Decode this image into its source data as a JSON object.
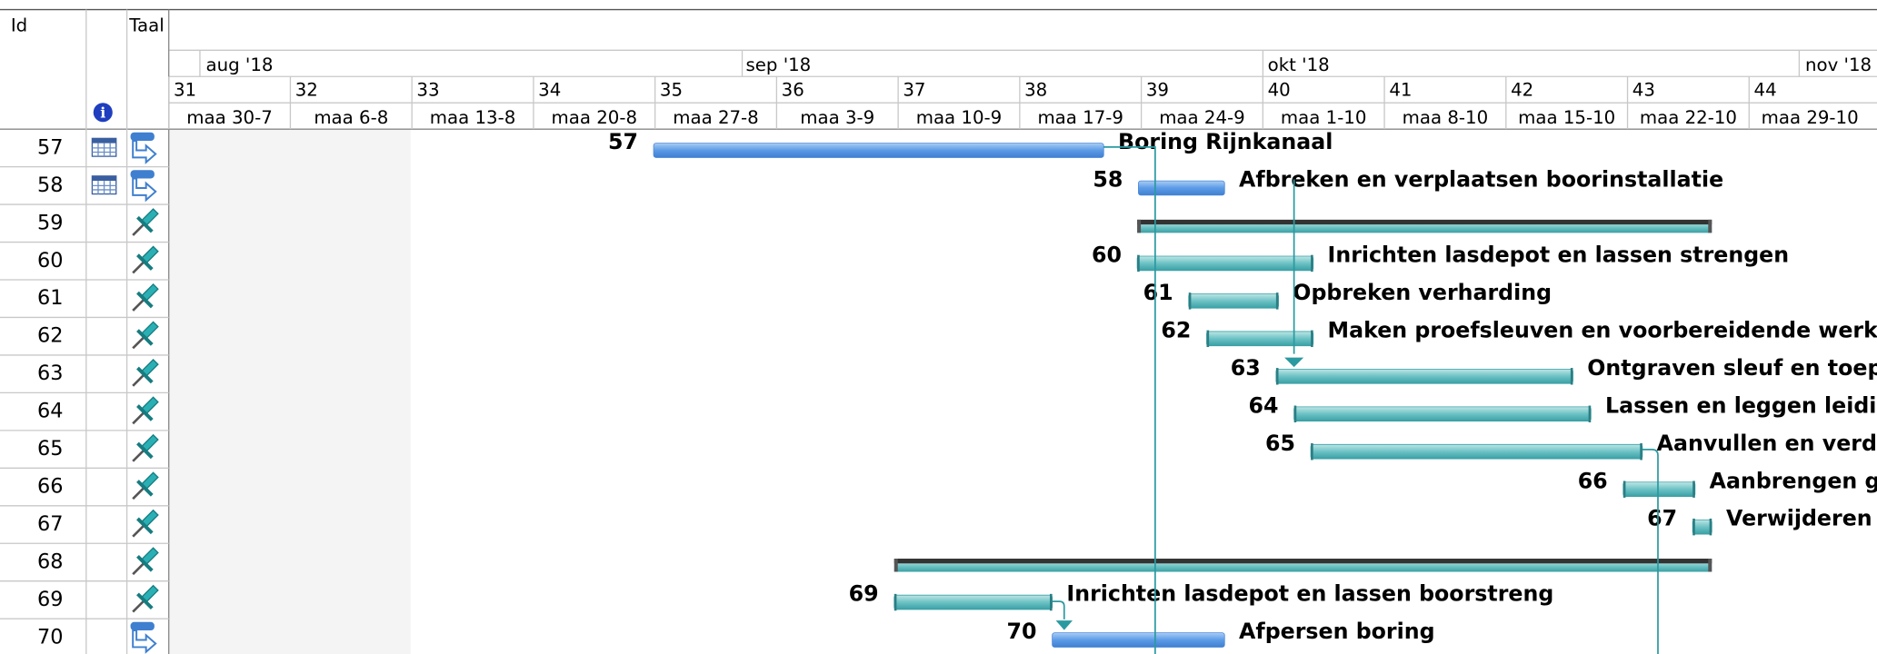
{
  "header": {
    "columns": [
      "Id",
      "Taal"
    ]
  },
  "timescale": {
    "months": [
      "aug '18",
      "sep '18",
      "okt '18",
      "nov '18"
    ],
    "weeks": [
      31,
      32,
      33,
      34,
      35,
      36,
      37,
      38,
      39,
      40,
      41,
      42,
      43,
      44
    ],
    "days": [
      "maa 30-7",
      "maa 6-8",
      "maa 13-8",
      "maa 20-8",
      "maa 27-8",
      "maa 3-9",
      "maa 10-9",
      "maa 17-9",
      "maa 24-9",
      "maa 1-10",
      "maa 8-10",
      "maa 15-10",
      "maa 22-10",
      "maa 29-10"
    ]
  },
  "rows": [
    {
      "id": 57,
      "name": "Boring Rijnkanaal"
    },
    {
      "id": 58,
      "name": "Afbreken en verplaatsen boorinstallatie"
    },
    {
      "id": 59
    },
    {
      "id": 60,
      "name": "Inrichten lasdepot en lassen strengen"
    },
    {
      "id": 61,
      "name": "Opbreken verharding"
    },
    {
      "id": 62,
      "name": "Maken proefsleuven en voorbereidende werkza"
    },
    {
      "id": 63,
      "name": "Ontgraven sleuf en toepa"
    },
    {
      "id": 64,
      "name": "Lassen en leggen leidin"
    },
    {
      "id": 65,
      "name": "Aanvullen en verdi"
    },
    {
      "id": 66,
      "name": "Aanbrengen g"
    },
    {
      "id": 67,
      "name": "Verwijderen"
    },
    {
      "id": 68
    },
    {
      "id": 69,
      "name": "Inrichten lasdepot en lassen boorstreng"
    },
    {
      "id": 70,
      "name": "Afpersen boring"
    }
  ]
}
